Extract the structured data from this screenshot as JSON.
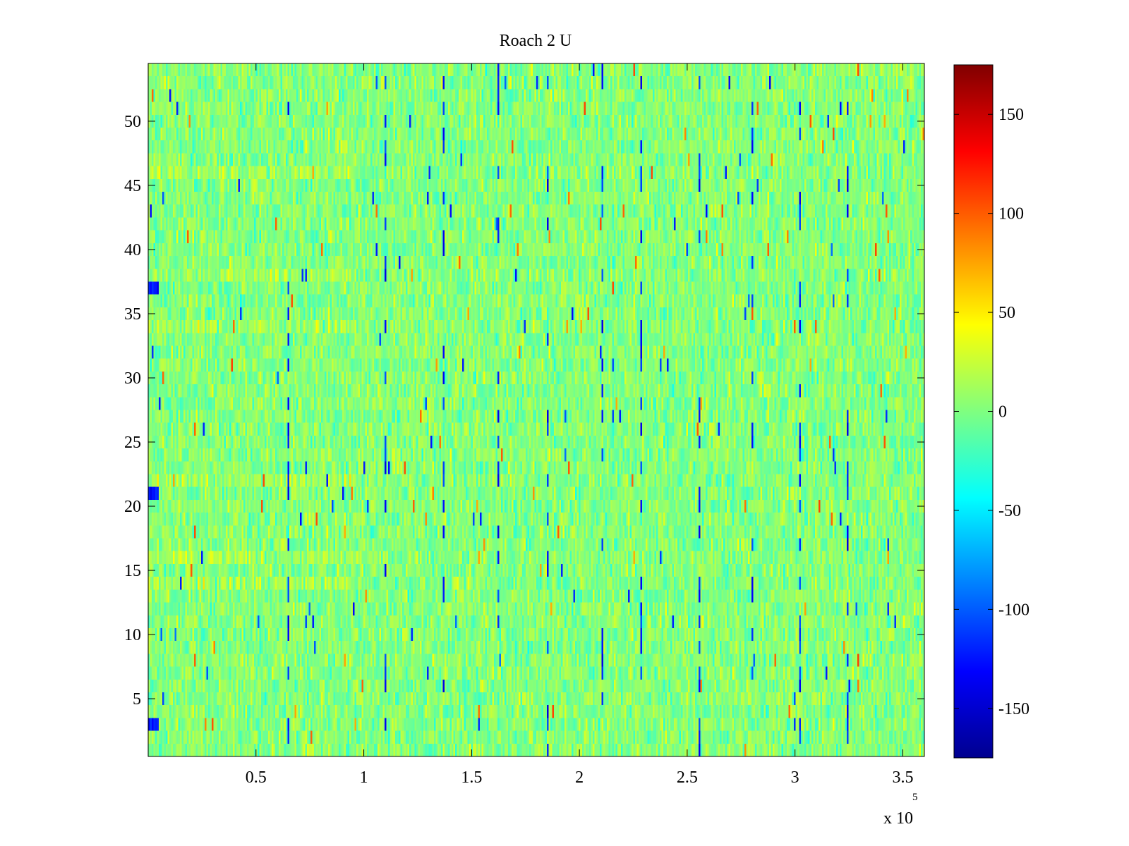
{
  "chart_data": {
    "type": "heatmap",
    "title": "Roach 2 U",
    "xlabel": "",
    "ylabel": "",
    "x_multiplier_label": "x 10",
    "x_multiplier_exponent": "5",
    "xlim": [
      0,
      360000
    ],
    "ylim": [
      0.5,
      54.5
    ],
    "x_ticks": [
      0.5,
      1,
      1.5,
      2,
      2.5,
      3,
      3.5
    ],
    "x_tick_labels": [
      "0.5",
      "1",
      "1.5",
      "2",
      "2.5",
      "3",
      "3.5"
    ],
    "y_ticks": [
      5,
      10,
      15,
      20,
      25,
      30,
      35,
      40,
      45,
      50
    ],
    "y_tick_labels": [
      "5",
      "10",
      "15",
      "20",
      "25",
      "30",
      "35",
      "40",
      "45",
      "50"
    ],
    "rows": 54,
    "colorbar": {
      "colormap": "jet",
      "clim": [
        -175,
        175
      ],
      "ticks": [
        150,
        100,
        50,
        0,
        -50,
        -100,
        -150
      ],
      "tick_labels": [
        "150",
        "100",
        "50",
        "0",
        "-50",
        "-100",
        "-150"
      ]
    },
    "value_distribution": {
      "typical_range": [
        -40,
        40
      ],
      "dominant_value": 0,
      "sparse_extremes_min": -150,
      "sparse_extremes_max": 110
    },
    "bright_stripe_rows": [
      37,
      21,
      3
    ],
    "warm_rows": [
      46,
      38,
      34,
      14,
      16,
      22
    ],
    "recurring_spike_columns_x": [
      65000,
      110000,
      137000,
      162000,
      185000,
      210000,
      228000,
      255000,
      280000,
      302000,
      324000
    ]
  }
}
